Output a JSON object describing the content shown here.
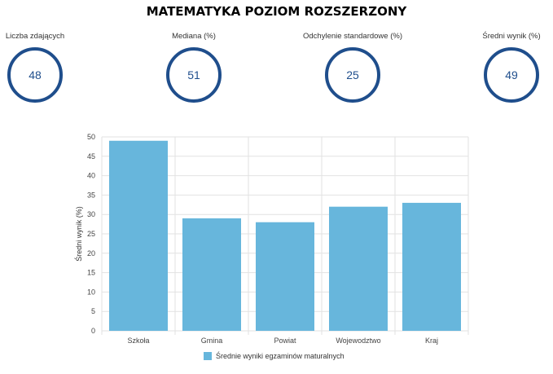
{
  "header": {
    "title": "MATEMATYKA POZIOM ROZSZERZONY"
  },
  "stats": [
    {
      "label": "Liczba zdających",
      "value": "48"
    },
    {
      "label": "Mediana (%)",
      "value": "51"
    },
    {
      "label": "Odchylenie standardowe (%)",
      "value": "25"
    },
    {
      "label": "Średni wynik (%)",
      "value": "49"
    }
  ],
  "colors": {
    "accent": "#1f4e8c",
    "bar": "#67b6dc",
    "grid": "#e2e2e2"
  },
  "chart_data": {
    "type": "bar",
    "categories": [
      "Szkoła",
      "Gmina",
      "Powiat",
      "Wojewodztwo",
      "Kraj"
    ],
    "series": [
      {
        "name": "Średnie wyniki egzaminów maturalnych",
        "values": [
          49,
          29,
          28,
          32,
          33
        ]
      }
    ],
    "ylabel": "Średni wynik (%)",
    "ylim": [
      0,
      50
    ],
    "yticks": [
      0,
      5,
      10,
      15,
      20,
      25,
      30,
      35,
      40,
      45,
      50
    ],
    "grid": true,
    "legend": "bottom"
  }
}
